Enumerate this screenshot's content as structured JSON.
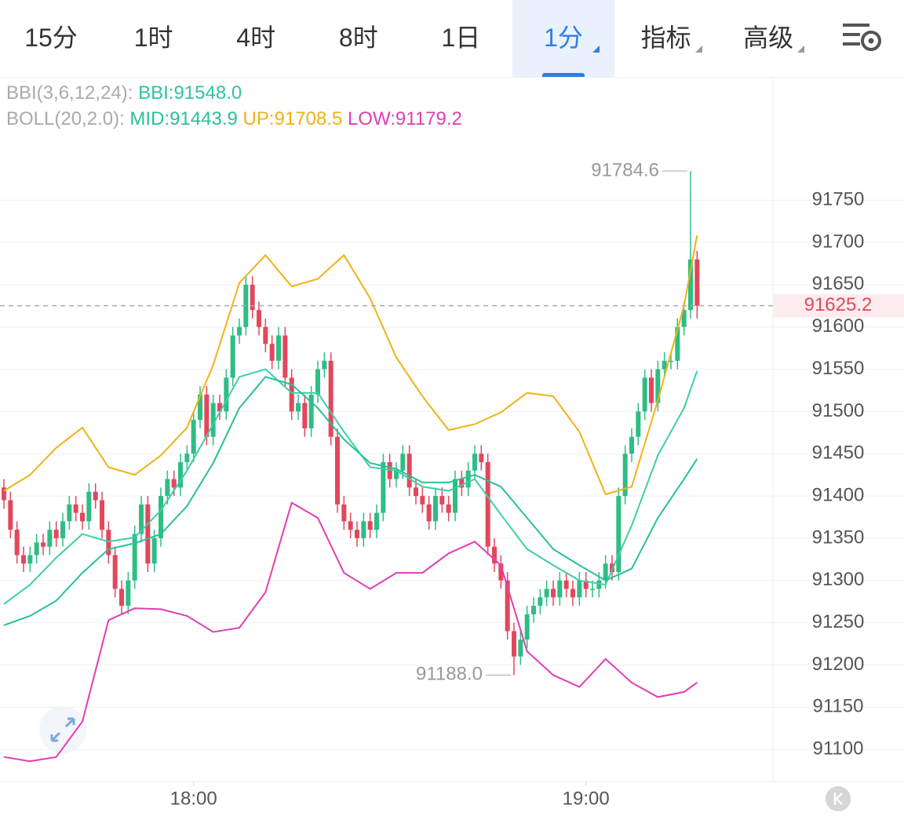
{
  "tabs": [
    "15分",
    "1时",
    "4时",
    "8时",
    "1日",
    "1分",
    "指标",
    "高级"
  ],
  "selected_tab": 5,
  "menu_tabs": [
    5,
    6,
    7
  ],
  "indicators": {
    "bbi_label": "BBI(3,6,12,24):",
    "bbi": "BBI:91548.0",
    "boll_label": "BOLL(20,2.0):",
    "mid": "MID:91443.9",
    "up": "UP:91708.5",
    "low": "LOW:91179.2"
  },
  "chart_data": {
    "type": "candlestick",
    "x": [
      0,
      1,
      2,
      3,
      4,
      5,
      6,
      7,
      8,
      9,
      10,
      11,
      12,
      13,
      14,
      15,
      16,
      17,
      18,
      19,
      20,
      21,
      22,
      23,
      24,
      25,
      26,
      27,
      28,
      29,
      30,
      31,
      32,
      33,
      34,
      35,
      36,
      37,
      38,
      39,
      40,
      41,
      42,
      43,
      44,
      45,
      46,
      47,
      48,
      49,
      50,
      51,
      52,
      53,
      54,
      55,
      56,
      57,
      58,
      59,
      60,
      61,
      62,
      63,
      64,
      65,
      66,
      67,
      68,
      69,
      70,
      71,
      72,
      73,
      74,
      75,
      76,
      77,
      78,
      79,
      80,
      81,
      82,
      83,
      84,
      85,
      86,
      87,
      88,
      89,
      90,
      91,
      92,
      93,
      94,
      95,
      96,
      97,
      98,
      99,
      100,
      101,
      102,
      103,
      104,
      105,
      106
    ],
    "open": [
      91410,
      91395,
      91360,
      91330,
      91320,
      91330,
      91345,
      91340,
      91360,
      91350,
      91370,
      91390,
      91380,
      91370,
      91405,
      91395,
      91360,
      91330,
      91290,
      91270,
      91300,
      91355,
      91390,
      91320,
      91350,
      91400,
      91420,
      91410,
      91440,
      91450,
      91490,
      91520,
      91470,
      91510,
      91500,
      91540,
      91590,
      91600,
      91650,
      91620,
      91600,
      91580,
      91560,
      91590,
      91540,
      91500,
      91510,
      91480,
      91520,
      91550,
      91560,
      91470,
      91390,
      91370,
      91360,
      91350,
      91370,
      91360,
      91380,
      91440,
      91420,
      91430,
      91450,
      91410,
      91400,
      91390,
      91370,
      91400,
      91390,
      91380,
      91420,
      91410,
      91430,
      91450,
      91440,
      91340,
      91320,
      91300,
      91240,
      91210,
      91230,
      91260,
      91270,
      91280,
      91290,
      91280,
      91300,
      91290,
      91280,
      91300,
      91290,
      91290,
      91300,
      91320,
      91310,
      91400,
      91450,
      91470,
      91500,
      91540,
      91510,
      91550,
      91560,
      91560,
      91600,
      91620,
      91680
    ],
    "high": [
      91420,
      91405,
      91370,
      91340,
      91340,
      91355,
      91355,
      91370,
      91370,
      91380,
      91400,
      91400,
      91390,
      91415,
      91415,
      91405,
      91370,
      91340,
      91300,
      91310,
      91365,
      91400,
      91400,
      91360,
      91410,
      91430,
      91430,
      91450,
      91460,
      91500,
      91530,
      91530,
      91520,
      91520,
      91550,
      91600,
      91610,
      91660,
      91660,
      91630,
      91610,
      91590,
      91600,
      91600,
      91550,
      91520,
      91520,
      91530,
      91560,
      91570,
      91570,
      91480,
      91400,
      91380,
      91370,
      91380,
      91380,
      91390,
      91450,
      91450,
      91440,
      91460,
      91460,
      91420,
      91410,
      91400,
      91410,
      91410,
      91400,
      91430,
      91430,
      91440,
      91460,
      91460,
      91450,
      91350,
      91330,
      91310,
      91250,
      91240,
      91270,
      91280,
      91290,
      91300,
      91300,
      91310,
      91310,
      91300,
      91310,
      91310,
      91300,
      91310,
      91330,
      91330,
      91410,
      91460,
      91480,
      91510,
      91550,
      91550,
      91560,
      91570,
      91570,
      91610,
      91630,
      91784.6,
      91690
    ],
    "low": [
      91385,
      91350,
      91320,
      91310,
      91310,
      91320,
      91330,
      91330,
      91340,
      91340,
      91360,
      91370,
      91360,
      91360,
      91385,
      91350,
      91320,
      91280,
      91260,
      91260,
      91290,
      91345,
      91310,
      91310,
      91340,
      91390,
      91400,
      91400,
      91430,
      91440,
      91480,
      91460,
      91460,
      91490,
      91490,
      91530,
      91580,
      91590,
      91610,
      91590,
      91570,
      91550,
      91550,
      91530,
      91490,
      91490,
      91470,
      91470,
      91510,
      91540,
      91460,
      91380,
      91360,
      91350,
      91340,
      91340,
      91350,
      91350,
      91370,
      91410,
      91410,
      91420,
      91400,
      91390,
      91380,
      91360,
      91360,
      91380,
      91370,
      91370,
      91400,
      91400,
      91420,
      91430,
      91330,
      91310,
      91290,
      91230,
      91188.0,
      91200,
      91220,
      91250,
      91260,
      91270,
      91270,
      91270,
      91280,
      91270,
      91270,
      91280,
      91280,
      91280,
      91290,
      91300,
      91300,
      91390,
      91440,
      91460,
      91490,
      91500,
      91500,
      91540,
      91550,
      91550,
      91590,
      91610,
      91610
    ],
    "close": [
      91395,
      91360,
      91330,
      91320,
      91330,
      91345,
      91340,
      91360,
      91350,
      91370,
      91390,
      91380,
      91370,
      91405,
      91395,
      91360,
      91330,
      91290,
      91270,
      91300,
      91355,
      91390,
      91320,
      91350,
      91400,
      91420,
      91410,
      91440,
      91450,
      91490,
      91520,
      91470,
      91510,
      91500,
      91540,
      91590,
      91600,
      91650,
      91620,
      91600,
      91580,
      91560,
      91590,
      91540,
      91500,
      91510,
      91480,
      91520,
      91550,
      91560,
      91470,
      91390,
      91370,
      91360,
      91350,
      91370,
      91360,
      91380,
      91440,
      91420,
      91430,
      91450,
      91410,
      91400,
      91390,
      91370,
      91400,
      91390,
      91380,
      91420,
      91410,
      91430,
      91450,
      91440,
      91340,
      91320,
      91300,
      91240,
      91210,
      91230,
      91260,
      91270,
      91280,
      91290,
      91280,
      91300,
      91290,
      91280,
      91300,
      91290,
      91290,
      91300,
      91320,
      91310,
      91400,
      91450,
      91470,
      91500,
      91540,
      91510,
      91550,
      91560,
      91560,
      91600,
      91620,
      91680,
      91625.2
    ],
    "up_color": "#2ebd85",
    "down_color": "#e2475c",
    "lines": [
      {
        "color": "#3ccfa8",
        "x": [
          0,
          4,
          8,
          12,
          16,
          20,
          24,
          28,
          32,
          36,
          40,
          44,
          48,
          52,
          56,
          60,
          64,
          68,
          72,
          76,
          80,
          84,
          88,
          92,
          96,
          100,
          104,
          106
        ],
        "values": [
          91272,
          91295,
          91327,
          91355,
          91346,
          91351,
          91383,
          91430,
          91485,
          91541,
          91550,
          91522,
          91522,
          91476,
          91434,
          91430,
          91411,
          91406,
          91420,
          91378,
          91337,
          91318,
          91300,
          91295,
          91365,
          91448,
          91504,
          91548.0
        ]
      },
      {
        "color": "#2bbf9a",
        "x": [
          0,
          4,
          8,
          12,
          16,
          20,
          24,
          28,
          32,
          36,
          40,
          44,
          48,
          52,
          56,
          60,
          64,
          68,
          72,
          76,
          80,
          84,
          88,
          92,
          96,
          100,
          104,
          106
        ],
        "values": [
          91247,
          91258,
          91276,
          91309,
          91337,
          91344,
          91355,
          91388,
          91439,
          91504,
          91541,
          91532,
          91504,
          91467,
          91439,
          91432,
          91416,
          91416,
          91425,
          91411,
          91374,
          91337,
          91318,
          91300,
          91314,
          91374,
          91420,
          91443.9
        ]
      },
      {
        "color": "#f0b216",
        "x": [
          0,
          4,
          8,
          12,
          16,
          20,
          24,
          28,
          32,
          36,
          40,
          44,
          48,
          52,
          56,
          60,
          64,
          68,
          72,
          76,
          80,
          84,
          88,
          92,
          96,
          100,
          104,
          106
        ],
        "values": [
          91406,
          91425,
          91457,
          91481,
          91434,
          91425,
          91448,
          91481,
          91555,
          91652,
          91685,
          91648,
          91657,
          91685,
          91634,
          91564,
          91518,
          91478,
          91485,
          91499,
          91522,
          91518,
          91476,
          91402,
          91411,
          91513,
          91625,
          91708.5
        ]
      },
      {
        "color": "#e03eb4",
        "x": [
          0,
          4,
          8,
          12,
          16,
          20,
          24,
          28,
          32,
          36,
          40,
          44,
          48,
          52,
          56,
          60,
          64,
          68,
          72,
          76,
          80,
          84,
          88,
          92,
          96,
          100,
          104,
          106
        ],
        "values": [
          91091,
          91086,
          91091,
          91133,
          91253,
          91267,
          91266,
          91258,
          91239,
          91244,
          91286,
          91392,
          91374,
          91309,
          91290,
          91309,
          91309,
          91332,
          91346,
          91318,
          91216,
          91188,
          91174,
          91207,
          91179,
          91162,
          91168,
          91179.2
        ]
      }
    ],
    "last_price": 91625.2,
    "annotations": [
      "91784.6",
      "91188.0"
    ],
    "xlim": [
      -0.6,
      117.6
    ],
    "xticks": [
      {
        "value": 29,
        "label": "18:00"
      },
      {
        "value": 89,
        "label": "19:00"
      }
    ],
    "ylim": [
      91063,
      91896
    ],
    "yticks": [
      91100,
      91150,
      91200,
      91250,
      91300,
      91350,
      91400,
      91450,
      91500,
      91550,
      91600,
      91650,
      91700,
      91750
    ],
    "grid": true
  }
}
